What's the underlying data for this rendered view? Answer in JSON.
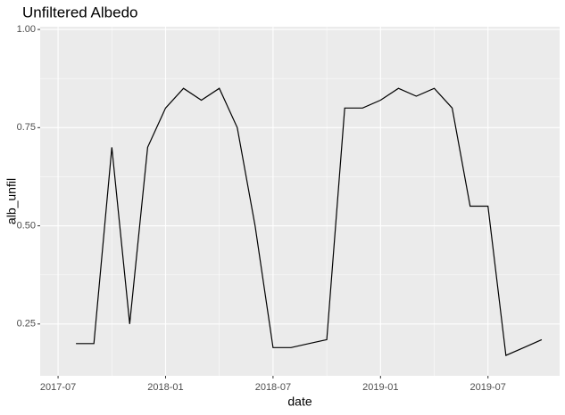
{
  "chart_data": {
    "type": "line",
    "title": "Unfiltered Albedo",
    "x_label": "date",
    "y_label": "alb_unfil",
    "x": [
      "2017-08",
      "2017-09",
      "2017-10",
      "2017-11",
      "2017-12",
      "2018-01",
      "2018-02",
      "2018-03",
      "2018-04",
      "2018-05",
      "2018-06",
      "2018-07",
      "2018-08",
      "2018-09",
      "2018-10",
      "2018-11",
      "2018-12",
      "2019-01",
      "2019-02",
      "2019-03",
      "2019-04",
      "2019-05",
      "2019-06",
      "2019-07",
      "2019-08",
      "2019-09",
      "2019-10"
    ],
    "series": [
      {
        "name": "alb_unfil",
        "color": "#000000",
        "values": [
          0.2,
          0.2,
          0.7,
          0.25,
          0.7,
          0.8,
          0.85,
          0.82,
          0.85,
          0.75,
          0.5,
          0.19,
          0.19,
          0.2,
          0.21,
          0.8,
          0.8,
          0.82,
          0.85,
          0.83,
          0.85,
          0.8,
          0.55,
          0.55,
          0.17,
          0.19,
          0.21
        ]
      }
    ],
    "xlim": [
      "2017-06",
      "2019-11"
    ],
    "xticks": [
      "2017-07",
      "2018-01",
      "2018-07",
      "2019-01",
      "2019-07"
    ],
    "ylim": [
      0.118,
      1.007
    ],
    "yticks": [
      {
        "value": 0.25,
        "label": "0.25"
      },
      {
        "value": 0.5,
        "label": "0.50"
      },
      {
        "value": 0.75,
        "label": "0.75"
      },
      {
        "value": 1,
        "label": "1.00"
      }
    ],
    "grid": true
  }
}
